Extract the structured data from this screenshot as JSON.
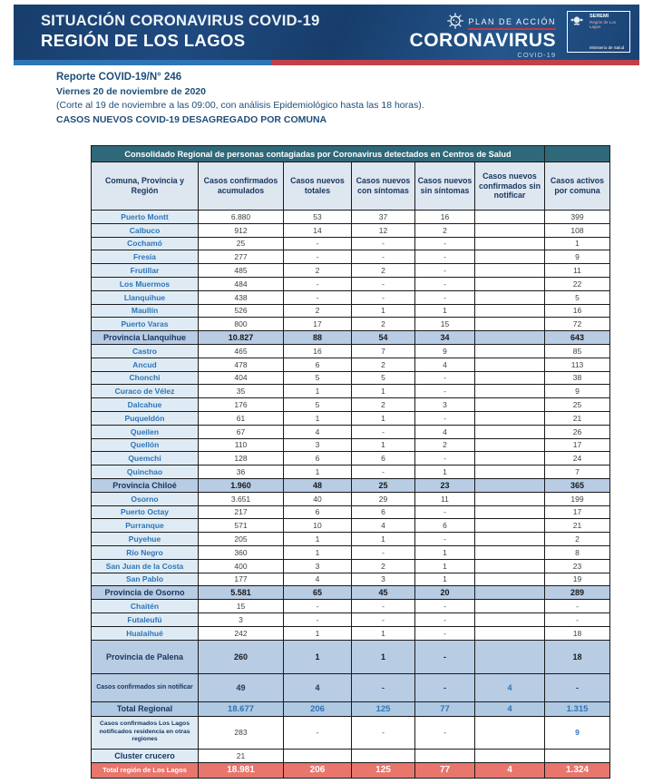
{
  "banner": {
    "title_line1": "SITUACIÓN CORONAVIRUS COVID-19",
    "title_line2": "REGIÓN DE LOS LAGOS",
    "logo": {
      "plan": "PLAN DE ACCIÓN",
      "brand": "CORONAVIRUS",
      "sub": "COVID-19"
    },
    "seremi": {
      "line1": "SEREMI",
      "line2": "Región de Los Lagos",
      "line3": "Ministerio de Salud"
    },
    "colors": {
      "banner_navy": "#1b4373",
      "stripe_blue": "#2E75B6",
      "stripe_red": "#C2404A",
      "total_row_red": "#E8766D",
      "table_title_teal": "#2E6879"
    }
  },
  "report": {
    "line1": "Reporte COVID-19/N° 246",
    "line2": "Viernes 20 de noviembre de 2020",
    "line3": "(Corte al 19 de noviembre a las 09:00, con análisis Epidemiológico hasta las 18 horas).",
    "line4": "CASOS NUEVOS COVID-19 DESAGREGADO POR COMUNA"
  },
  "table": {
    "title": "Consolidado Regional de personas contagiadas por Coronavirus detectados en Centros de Salud",
    "columns": [
      "Comuna, Provincia y Región",
      "Casos confirmados acumulados",
      "Casos nuevos totales",
      "Casos nuevos con síntomas",
      "Casos nuevos sin síntomas",
      "Casos nuevos confirmados sin notificar",
      "Casos activos por comuna"
    ],
    "rows": [
      {
        "label": "Puerto Montt",
        "type": "commune",
        "values": [
          "6.880",
          "53",
          "37",
          "16",
          "",
          "399"
        ]
      },
      {
        "label": "Calbuco",
        "type": "commune",
        "values": [
          "912",
          "14",
          "12",
          "2",
          "",
          "108"
        ]
      },
      {
        "label": "Cochamó",
        "type": "commune",
        "values": [
          "25",
          "-",
          "-",
          "-",
          "",
          "1"
        ]
      },
      {
        "label": "Fresia",
        "type": "commune",
        "values": [
          "277",
          "-",
          "-",
          "-",
          "",
          "9"
        ]
      },
      {
        "label": "Frutillar",
        "type": "commune",
        "values": [
          "485",
          "2",
          "2",
          "-",
          "",
          "11"
        ]
      },
      {
        "label": "Los Muermos",
        "type": "commune",
        "values": [
          "484",
          "-",
          "-",
          "-",
          "",
          "22"
        ]
      },
      {
        "label": "Llanquihue",
        "type": "commune",
        "values": [
          "438",
          "-",
          "-",
          "-",
          "",
          "5"
        ]
      },
      {
        "label": "Maullín",
        "type": "commune",
        "values": [
          "526",
          "2",
          "1",
          "1",
          "",
          "16"
        ]
      },
      {
        "label": "Puerto Varas",
        "type": "commune",
        "values": [
          "800",
          "17",
          "2",
          "15",
          "",
          "72"
        ]
      },
      {
        "label": "Provincia Llanquihue",
        "type": "province",
        "values": [
          "10.827",
          "88",
          "54",
          "34",
          "",
          "643"
        ]
      },
      {
        "label": "Castro",
        "type": "commune",
        "values": [
          "465",
          "16",
          "7",
          "9",
          "",
          "85"
        ]
      },
      {
        "label": "Ancud",
        "type": "commune",
        "values": [
          "478",
          "6",
          "2",
          "4",
          "",
          "113"
        ]
      },
      {
        "label": "Chonchi",
        "type": "commune",
        "values": [
          "404",
          "5",
          "5",
          "-",
          "",
          "38"
        ]
      },
      {
        "label": "Curaco de Vélez",
        "type": "commune",
        "values": [
          "35",
          "1",
          "1",
          "-",
          "",
          "9"
        ]
      },
      {
        "label": "Dalcahue",
        "type": "commune",
        "values": [
          "176",
          "5",
          "2",
          "3",
          "",
          "25"
        ]
      },
      {
        "label": "Puqueldón",
        "type": "commune",
        "values": [
          "61",
          "1",
          "1",
          "-",
          "",
          "21"
        ]
      },
      {
        "label": "Queilen",
        "type": "commune",
        "values": [
          "67",
          "4",
          "-",
          "4",
          "",
          "26"
        ]
      },
      {
        "label": "Quellón",
        "type": "commune",
        "values": [
          "110",
          "3",
          "1",
          "2",
          "",
          "17"
        ]
      },
      {
        "label": "Quemchi",
        "type": "commune",
        "values": [
          "128",
          "6",
          "6",
          "-",
          "",
          "24"
        ]
      },
      {
        "label": "Quinchao",
        "type": "commune",
        "values": [
          "36",
          "1",
          "-",
          "1",
          "",
          "7"
        ]
      },
      {
        "label": "Provincia Chiloé",
        "type": "province",
        "values": [
          "1.960",
          "48",
          "25",
          "23",
          "",
          "365"
        ]
      },
      {
        "label": "Osorno",
        "type": "commune",
        "values": [
          "3.651",
          "40",
          "29",
          "11",
          "",
          "199"
        ]
      },
      {
        "label": "Puerto Octay",
        "type": "commune",
        "values": [
          "217",
          "6",
          "6",
          "-",
          "",
          "17"
        ]
      },
      {
        "label": "Purranque",
        "type": "commune",
        "values": [
          "571",
          "10",
          "4",
          "6",
          "",
          "21"
        ]
      },
      {
        "label": "Puyehue",
        "type": "commune",
        "values": [
          "205",
          "1",
          "1",
          "-",
          "",
          "2"
        ]
      },
      {
        "label": "Río Negro",
        "type": "commune",
        "values": [
          "360",
          "1",
          "-",
          "1",
          "",
          "8"
        ]
      },
      {
        "label": "San Juan de la Costa",
        "type": "commune",
        "values": [
          "400",
          "3",
          "2",
          "1",
          "",
          "23"
        ]
      },
      {
        "label": "San Pablo",
        "type": "commune",
        "values": [
          "177",
          "4",
          "3",
          "1",
          "",
          "19"
        ]
      },
      {
        "label": "Provincia de Osorno",
        "type": "province",
        "values": [
          "5.581",
          "65",
          "45",
          "20",
          "",
          "289"
        ]
      },
      {
        "label": "Chaitén",
        "type": "commune",
        "values": [
          "15",
          "-",
          "-",
          "-",
          "",
          "-"
        ]
      },
      {
        "label": "Futaleufú",
        "type": "commune",
        "values": [
          "3",
          "-",
          "-",
          "-",
          "",
          "-"
        ]
      },
      {
        "label": "Hualaihué",
        "type": "commune",
        "values": [
          "242",
          "1",
          "1",
          "-",
          "",
          "18"
        ]
      },
      {
        "label": "Provincia de Palena",
        "type": "province-tall",
        "values": [
          "260",
          "1",
          "1",
          "-",
          "",
          "18"
        ]
      },
      {
        "label": "Casos confirmados sin notificar",
        "type": "special-blue",
        "values": [
          "49",
          "4",
          "-",
          "-",
          "4",
          "-"
        ]
      },
      {
        "label": "Total Regional",
        "type": "total-blue",
        "values": [
          "18.677",
          "206",
          "125",
          "77",
          "4",
          "1.315"
        ]
      },
      {
        "label": "Casos confirmados Los Lagos notificados residencia en otras regiones",
        "type": "special-white",
        "values": [
          "283",
          "-",
          "-",
          "-",
          "",
          "9"
        ]
      },
      {
        "label": "Cluster crucero",
        "type": "cluster",
        "values": [
          "21",
          "",
          "",
          "",
          "",
          ""
        ]
      },
      {
        "label": "Total región de Los Lagos",
        "type": "total-red",
        "values": [
          "18.981",
          "206",
          "125",
          "77",
          "4",
          "1.324"
        ]
      }
    ]
  }
}
